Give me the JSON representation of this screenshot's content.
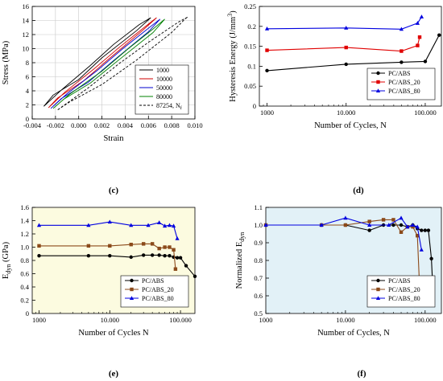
{
  "chart_data": [
    {
      "panel": "(c)",
      "type": "line",
      "xlabel": "Strain",
      "ylabel": "Stress (MPa)",
      "xlim": [
        -0.004,
        0.01
      ],
      "ylim": [
        0,
        16
      ],
      "xticks": [
        "-0.004",
        "-0.002",
        "0.000",
        "0.002",
        "0.004",
        "0.006",
        "0.008",
        "0.010"
      ],
      "yticks": [
        "0",
        "2",
        "4",
        "6",
        "8",
        "10",
        "12",
        "14",
        "16"
      ],
      "grid": true,
      "legend": "bottom-right",
      "series": [
        {
          "name": "1000",
          "color": "#000000",
          "dash": false,
          "x": [
            -0.003,
            -0.0022,
            0.0,
            0.002,
            0.005,
            0.0062,
            0.0052,
            0.003,
            0.001,
            -0.0015,
            -0.003
          ],
          "y": [
            1.8,
            3.4,
            5.6,
            8.7,
            12.6,
            14.4,
            13.4,
            10.6,
            7.6,
            4.1,
            1.8
          ]
        },
        {
          "name": "10000",
          "color": "#d00000",
          "dash": false,
          "x": [
            -0.0026,
            -0.0018,
            0.0004,
            0.0025,
            0.0055,
            0.0067,
            0.0057,
            0.0035,
            0.0013,
            -0.0012,
            -0.0026
          ],
          "y": [
            1.6,
            3.0,
            5.4,
            8.4,
            12.6,
            14.4,
            13.1,
            10.2,
            7.1,
            3.8,
            1.6
          ]
        },
        {
          "name": "50000",
          "color": "#0000cc",
          "dash": false,
          "x": [
            -0.0024,
            -0.0015,
            0.0008,
            0.003,
            0.006,
            0.007,
            0.006,
            0.0038,
            0.0016,
            -0.001,
            -0.0024
          ],
          "y": [
            1.5,
            2.9,
            5.2,
            8.3,
            12.4,
            14.2,
            12.9,
            10.0,
            6.9,
            3.6,
            1.5
          ]
        },
        {
          "name": "80000",
          "color": "#008000",
          "dash": false,
          "x": [
            -0.0022,
            -0.0013,
            0.001,
            0.0033,
            0.0064,
            0.0074,
            0.0064,
            0.0042,
            0.002,
            -0.0008,
            -0.0022
          ],
          "y": [
            1.5,
            2.8,
            5.1,
            8.2,
            12.3,
            14.2,
            12.8,
            9.9,
            6.8,
            3.5,
            1.5
          ]
        },
        {
          "name": "87254, N",
          "sub": "f",
          "color": "#000000",
          "dash": true,
          "x": [
            -0.0018,
            -0.0008,
            0.002,
            0.005,
            0.008,
            0.0092,
            0.0094,
            0.0086,
            0.006,
            0.0035,
            0.0008,
            -0.0018
          ],
          "y": [
            1.3,
            2.4,
            4.9,
            8.4,
            12.3,
            14.3,
            14.5,
            13.8,
            10.9,
            7.9,
            4.4,
            1.3
          ]
        }
      ]
    },
    {
      "panel": "(d)",
      "type": "line",
      "xscale": "log",
      "xlabel": "Number of Cycles, N",
      "ylabel": "Hysteresis Energy (J/mm",
      "ylabel_sup": "3",
      "ylabel_end": ")",
      "xlim": [
        800,
        160000
      ],
      "ylim": [
        0,
        0.25
      ],
      "xticks": [
        "1000",
        "10.000",
        "100.000"
      ],
      "yticks": [
        "0",
        "0.05",
        "0.1",
        "0.15",
        "0.2",
        "0.25"
      ],
      "legend": "bottom-right",
      "series": [
        {
          "name": "PC/ABS",
          "color": "#000000",
          "marker": "circle",
          "x": [
            1000,
            10000,
            50000,
            100000,
            150000
          ],
          "y": [
            0.089,
            0.105,
            0.11,
            0.112,
            0.178
          ]
        },
        {
          "name": "PC/ABS_20",
          "color": "#e00000",
          "marker": "square",
          "x": [
            1000,
            10000,
            50000,
            80000,
            85000
          ],
          "y": [
            0.14,
            0.147,
            0.138,
            0.152,
            0.173
          ]
        },
        {
          "name": "PC/ABS_80",
          "color": "#0000e0",
          "marker": "triangle",
          "x": [
            1000,
            10000,
            50000,
            80000,
            90000
          ],
          "y": [
            0.194,
            0.196,
            0.193,
            0.208,
            0.224
          ]
        }
      ]
    },
    {
      "panel": "(e)",
      "type": "line",
      "xscale": "log",
      "xlabel": "Number of Cycles N",
      "ylabel": "E",
      "ylabel_sub": "dyn",
      "ylabel_end": " (GPa)",
      "xlim": [
        800,
        160000
      ],
      "ylim": [
        0,
        1.6
      ],
      "xticks": [
        "1000",
        "10.000",
        "100.000"
      ],
      "yticks": [
        "0",
        "0.2",
        "0.4",
        "0.6",
        "0.8",
        "1.0",
        "1.2",
        "1.4",
        "1.6"
      ],
      "background": "#fcfbe0",
      "legend": "bottom-right",
      "series": [
        {
          "name": "PC/ABS",
          "color": "#000000",
          "marker": "circle",
          "x": [
            1000,
            5000,
            10000,
            20000,
            30000,
            40000,
            50000,
            60000,
            70000,
            80000,
            90000,
            100000,
            120000,
            160000
          ],
          "y": [
            0.87,
            0.87,
            0.87,
            0.85,
            0.88,
            0.88,
            0.88,
            0.87,
            0.87,
            0.85,
            0.84,
            0.84,
            0.72,
            0.56
          ]
        },
        {
          "name": "PC/ABS_20",
          "color": "#8b4a1a",
          "marker": "square",
          "x": [
            1000,
            5000,
            10000,
            20000,
            30000,
            40000,
            50000,
            60000,
            70000,
            80000,
            85000
          ],
          "y": [
            1.02,
            1.02,
            1.02,
            1.04,
            1.05,
            1.05,
            0.98,
            1.0,
            1.0,
            0.96,
            0.67
          ]
        },
        {
          "name": "PC/ABS_80",
          "color": "#0000e0",
          "marker": "triangle",
          "x": [
            1000,
            5000,
            10000,
            20000,
            35000,
            50000,
            60000,
            70000,
            80000,
            90000
          ],
          "y": [
            1.33,
            1.33,
            1.38,
            1.33,
            1.33,
            1.37,
            1.32,
            1.33,
            1.32,
            1.13
          ]
        }
      ]
    },
    {
      "panel": "(f)",
      "type": "line",
      "xscale": "log",
      "xlabel": "Number of Cycles, N",
      "ylabel": "Normalized E",
      "ylabel_sub": "dyn",
      "ylabel_end": "",
      "xlim": [
        1000,
        160000
      ],
      "ylim": [
        0.5,
        1.1
      ],
      "xticks": [
        "1000",
        "10.000",
        "100.000"
      ],
      "yticks": [
        "0.5",
        "0.6",
        "0.7",
        "0.8",
        "0.9",
        "1.0",
        "1.1"
      ],
      "background": "#e2f1f7",
      "legend": "bottom-right",
      "series": [
        {
          "name": "PC/ABS",
          "color": "#000000",
          "marker": "circle",
          "x": [
            1000,
            5000,
            10000,
            20000,
            30000,
            40000,
            50000,
            60000,
            70000,
            80000,
            90000,
            100000,
            110000,
            120000,
            125000
          ],
          "y": [
            1.0,
            1.0,
            1.0,
            0.97,
            1.0,
            1.0,
            1.0,
            0.99,
            1.0,
            0.98,
            0.97,
            0.97,
            0.97,
            0.81,
            0.64
          ]
        },
        {
          "name": "PC/ABS_20",
          "color": "#8b4a1a",
          "marker": "square",
          "x": [
            1000,
            5000,
            10000,
            20000,
            30000,
            40000,
            50000,
            60000,
            70000,
            80000,
            85000
          ],
          "y": [
            1.0,
            1.0,
            1.0,
            1.02,
            1.03,
            1.03,
            0.96,
            0.99,
            0.99,
            0.94,
            0.66
          ]
        },
        {
          "name": "PC/ABS_80",
          "color": "#0000e0",
          "marker": "triangle",
          "x": [
            1000,
            5000,
            10000,
            20000,
            35000,
            50000,
            60000,
            70000,
            80000,
            90000
          ],
          "y": [
            1.0,
            1.0,
            1.04,
            1.0,
            1.0,
            1.04,
            0.99,
            1.0,
            0.99,
            0.86
          ]
        }
      ]
    }
  ]
}
